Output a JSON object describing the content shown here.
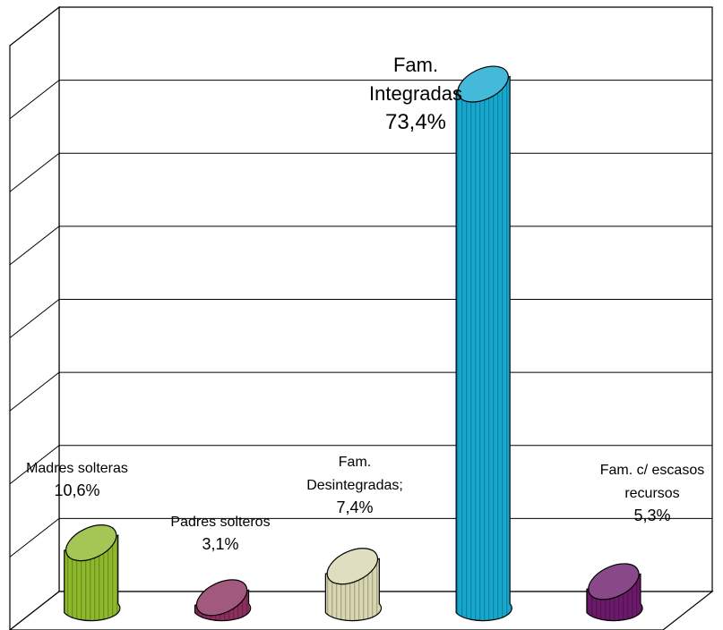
{
  "chart_data": {
    "type": "bar",
    "title": "",
    "xlabel": "",
    "ylabel": "",
    "ylim": [
      0,
      80
    ],
    "grid": true,
    "legend": "none",
    "categories": [
      "Madres solteras",
      "Padres solteros",
      "Fam. Desintegradas",
      "Fam. Integradas",
      "Fam. c/ escasos recursos"
    ],
    "values": [
      10.6,
      3.1,
      7.4,
      73.4,
      5.3
    ],
    "data_labels": [
      [
        "Madres solteras",
        "10,6%"
      ],
      [
        "Padres solteros",
        "3,1%"
      ],
      [
        "Fam.",
        "Desintegradas;",
        "7,4%"
      ],
      [
        "Fam.",
        "Integradas",
        "73,4%"
      ],
      [
        "Fam. c/ escasos",
        "recursos",
        "5,3%"
      ]
    ],
    "colors": [
      "#8db82a",
      "#8b2f5e",
      "#d8d6b0",
      "#16a8cf",
      "#6b1a6a"
    ]
  }
}
